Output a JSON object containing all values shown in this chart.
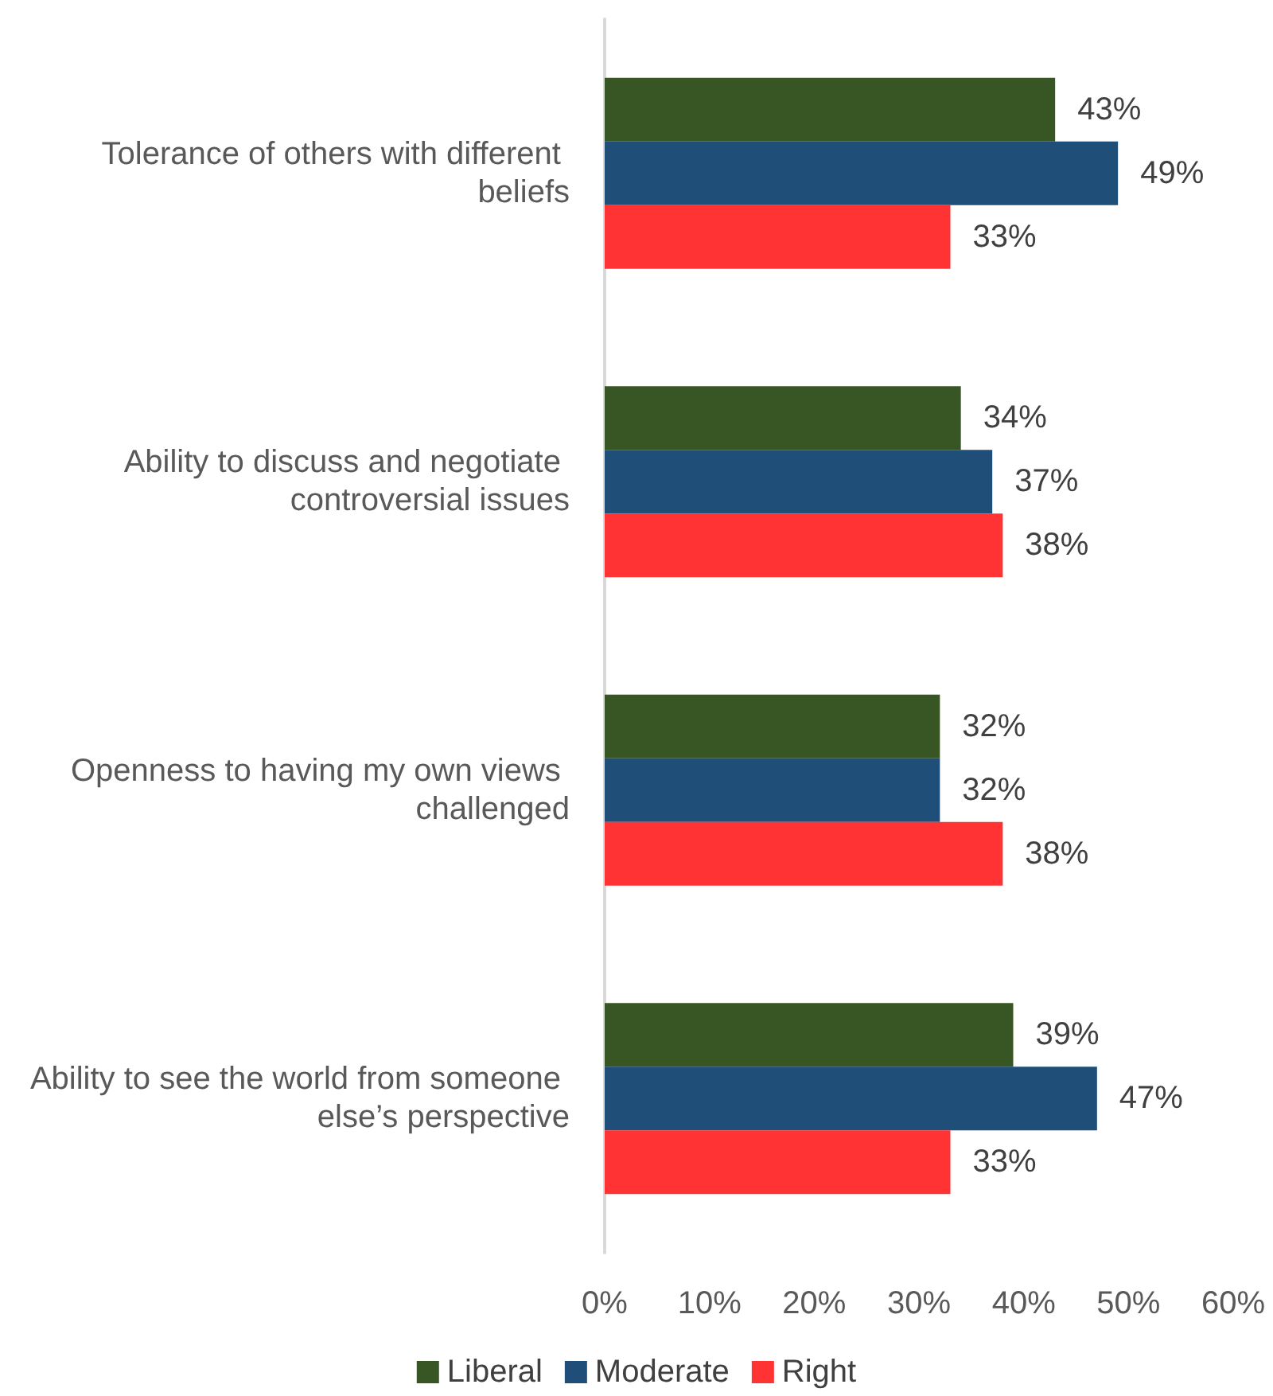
{
  "chart_data": {
    "type": "bar",
    "orientation": "horizontal",
    "categories": [
      "Tolerance of others with different beliefs",
      "Ability to discuss and negotiate controversial issues",
      "Openness to having my own views challenged",
      "Ability to see the world from someone else’s perspective"
    ],
    "series": [
      {
        "name": "Liberal",
        "color": "#375623",
        "values": [
          43,
          34,
          32,
          39
        ],
        "value_labels": [
          "43%",
          "34%",
          "32%",
          "39%"
        ]
      },
      {
        "name": "Moderate",
        "color": "#1f4e79",
        "values": [
          49,
          37,
          32,
          47
        ],
        "value_labels": [
          "49%",
          "37%",
          "32%",
          "47%"
        ]
      },
      {
        "name": "Right",
        "color": "#ff3333",
        "values": [
          33,
          38,
          38,
          33
        ],
        "value_labels": [
          "33%",
          "38%",
          "38%",
          "33%"
        ]
      }
    ],
    "xlim": [
      0,
      60
    ],
    "xticks": [
      {
        "value": 0,
        "label": "0%"
      },
      {
        "value": 10,
        "label": "10%"
      },
      {
        "value": 20,
        "label": "20%"
      },
      {
        "value": 30,
        "label": "30%"
      },
      {
        "value": 40,
        "label": "40%"
      },
      {
        "value": 50,
        "label": "50%"
      },
      {
        "value": 60,
        "label": "60%"
      }
    ],
    "grid": false,
    "legend": "bottom"
  }
}
